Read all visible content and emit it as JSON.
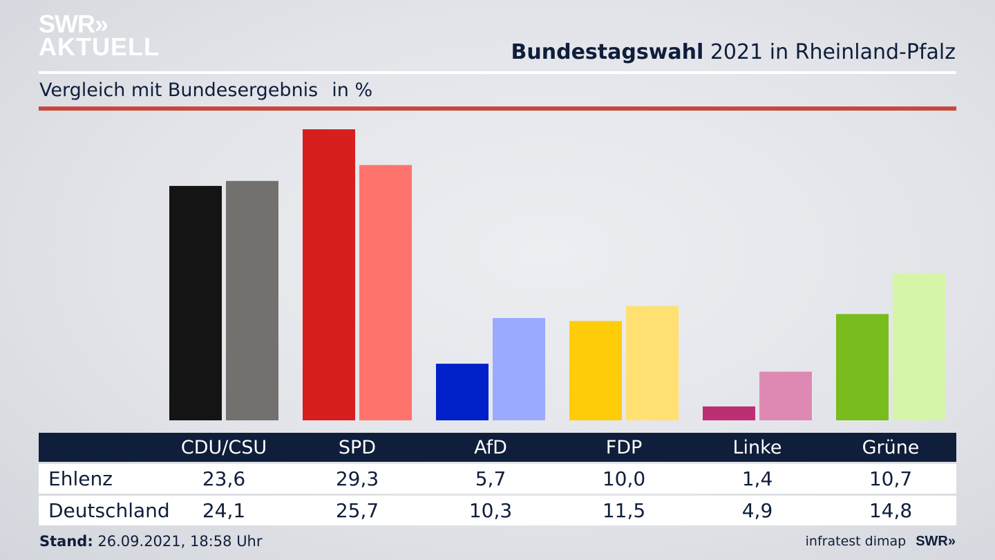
{
  "logo": {
    "line1": "SWR»",
    "line2": "AKTUELL"
  },
  "header": {
    "title_bold": "Bundestagswahl",
    "title_rest": "2021 in Rheinland-Pfalz"
  },
  "subheader": {
    "text": "Vergleich mit Bundesergebnis",
    "unit": "in %"
  },
  "footer": {
    "stand_label": "Stand:",
    "stand_value": "26.09.2021, 18:58 Uhr",
    "source": "infratest dimap",
    "source_logo": "SWR»"
  },
  "table": {
    "rows": [
      {
        "label": "Ehlenz",
        "values": [
          "23,6",
          "29,3",
          "5,7",
          "10,0",
          "1,4",
          "10,7"
        ]
      },
      {
        "label": "Deutschland",
        "values": [
          "24,1",
          "25,7",
          "10,3",
          "11,5",
          "4,9",
          "14,8"
        ]
      }
    ]
  },
  "chart_data": {
    "type": "bar",
    "title": "Bundestagswahl 2021 in Rheinland-Pfalz",
    "subtitle": "Vergleich mit Bundesergebnis in %",
    "categories": [
      "CDU/CSU",
      "SPD",
      "AfD",
      "FDP",
      "Linke",
      "Grüne"
    ],
    "series": [
      {
        "name": "Ehlenz",
        "values": [
          23.6,
          29.3,
          5.7,
          10.0,
          1.4,
          10.7
        ],
        "colors": [
          "#141414",
          "#d71f1f",
          "#0020c8",
          "#ffcc0a",
          "#bd2f74",
          "#78bc1e"
        ]
      },
      {
        "name": "Deutschland",
        "values": [
          24.1,
          25.7,
          10.3,
          11.5,
          4.9,
          14.8
        ],
        "colors": [
          "#72716e",
          "#ff736d",
          "#9aaaff",
          "#ffe070",
          "#de89b4",
          "#d6f5a8"
        ]
      }
    ],
    "xlabel": "",
    "ylabel": "%",
    "ylim": [
      0,
      30
    ],
    "grid": false,
    "legend": "table-below"
  }
}
